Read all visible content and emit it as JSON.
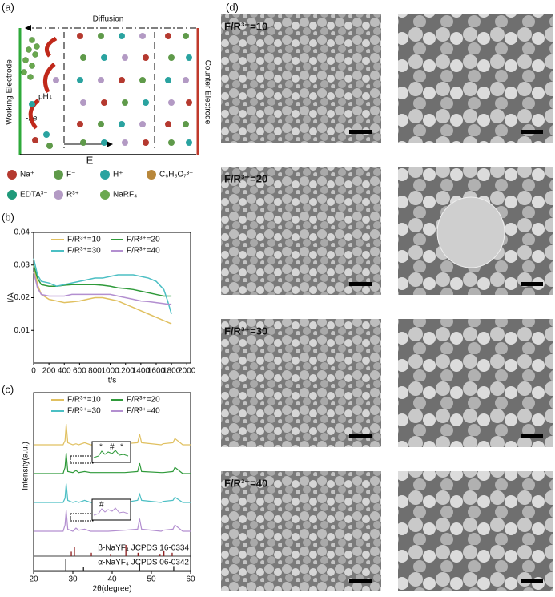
{
  "panel_labels": [
    "(a)",
    "(b)",
    "(c)",
    "(d)"
  ],
  "diagram": {
    "top_label": "Diffusion",
    "left_electrode": "Working Electrode",
    "right_electrode": "Counter Electrode",
    "field": "E",
    "ph": "pH↓",
    "electrons": "-2e",
    "legend": [
      {
        "label": "Na⁺",
        "color": "#b5392f"
      },
      {
        "label": "F⁻",
        "color": "#5f9a4a"
      },
      {
        "label": "H⁺",
        "color": "#2aa3a0"
      },
      {
        "label": "C₆H₅O₇³⁻",
        "color": "#b8873a"
      },
      {
        "label": "EDTA³⁻",
        "color": "#1f9a7a"
      },
      {
        "label": "R³⁺",
        "color": "#b39ac4"
      },
      {
        "label": "NaRF₄",
        "color": "#6aa84f"
      }
    ]
  },
  "chart_data": [
    {
      "type": "line",
      "x_label": "t/s",
      "y_label": "I/A",
      "x": [
        0,
        50,
        100,
        200,
        300,
        400,
        500,
        600,
        700,
        800,
        900,
        1000,
        1100,
        1200,
        1300,
        1400,
        1500,
        1600,
        1700,
        1750,
        1800
      ],
      "series": [
        {
          "name": "F/R³⁺=10",
          "color": "#e0c060",
          "values": [
            0.03,
            0.024,
            0.021,
            0.0195,
            0.019,
            0.0185,
            0.0187,
            0.019,
            0.0195,
            0.02,
            0.02,
            0.0195,
            0.019,
            0.018,
            0.017,
            0.016,
            0.015,
            0.014,
            0.013,
            0.0125,
            0.012
          ]
        },
        {
          "name": "F/R³⁺=20",
          "color": "#2f9a3a",
          "values": [
            0.03,
            0.026,
            0.024,
            0.0235,
            0.0235,
            0.0238,
            0.024,
            0.024,
            0.024,
            0.024,
            0.0238,
            0.0235,
            0.023,
            0.0228,
            0.0225,
            0.022,
            0.0215,
            0.021,
            0.0205,
            0.0205,
            0.0205
          ]
        },
        {
          "name": "F/R³⁺=30",
          "color": "#4cbfc4",
          "values": [
            0.032,
            0.027,
            0.025,
            0.0245,
            0.0235,
            0.024,
            0.0245,
            0.025,
            0.0255,
            0.026,
            0.026,
            0.0265,
            0.027,
            0.027,
            0.027,
            0.0265,
            0.026,
            0.025,
            0.0225,
            0.019,
            0.015
          ]
        },
        {
          "name": "F/R³⁺=40",
          "color": "#b38fd0",
          "values": [
            0.028,
            0.023,
            0.021,
            0.0205,
            0.0205,
            0.0205,
            0.021,
            0.021,
            0.021,
            0.021,
            0.021,
            0.021,
            0.0205,
            0.02,
            0.0195,
            0.019,
            0.0188,
            0.0185,
            0.0182,
            0.018,
            0.018
          ]
        }
      ],
      "xlim": [
        0,
        2050
      ],
      "ylim": [
        0,
        0.04
      ],
      "xticks": [
        0,
        200,
        400,
        600,
        800,
        1000,
        1200,
        1400,
        1600,
        1800,
        2000
      ],
      "yticks": [
        0.01,
        0.02,
        0.03,
        0.04
      ],
      "legend": "top"
    },
    {
      "type": "xrd",
      "x_label": "2θ(degree)",
      "y_label": "Intensity(a.u.)",
      "x": [
        20,
        27.5,
        28,
        28.3,
        28.7,
        30,
        30.8,
        31.5,
        33,
        34.5,
        39,
        43.2,
        46.5,
        47,
        47.5,
        52.5,
        53,
        55.5,
        56,
        58,
        60
      ],
      "series": [
        {
          "name": "F/R³⁺=10",
          "color": "#e0c060",
          "values": [
            0,
            0,
            0.2,
            1,
            0.1,
            0,
            0.05,
            0,
            0.1,
            0,
            0,
            0.05,
            0.1,
            0.5,
            0.1,
            0,
            0.05,
            0.1,
            0.3,
            0,
            0
          ]
        },
        {
          "name": "F/R³⁺=20",
          "color": "#2f9a3a",
          "values": [
            0,
            0,
            0.3,
            1,
            0.1,
            0.05,
            0.15,
            0.05,
            0.1,
            0.05,
            0.05,
            0.05,
            0.1,
            0.5,
            0.1,
            0.05,
            0.05,
            0.1,
            0.3,
            0,
            0
          ],
          "inset_labels": [
            "*",
            "#",
            "*"
          ]
        },
        {
          "name": "F/R³⁺=30",
          "color": "#4cbfc4",
          "values": [
            0,
            0,
            0.2,
            0.9,
            0.1,
            0,
            0.05,
            0,
            0.1,
            0,
            0,
            0,
            0.1,
            0.4,
            0.1,
            0,
            0.05,
            0.1,
            0.25,
            0,
            0
          ]
        },
        {
          "name": "F/R³⁺=40",
          "color": "#b38fd0",
          "values": [
            0,
            0,
            0.3,
            1,
            0.1,
            0,
            0.15,
            0.05,
            0.1,
            0,
            0,
            0.05,
            0.1,
            0.6,
            0.1,
            0,
            0.05,
            0.1,
            0.3,
            0,
            0
          ],
          "inset_labels": [
            "#"
          ]
        }
      ],
      "reference_patterns": [
        {
          "name": "β-NaYF₄ JCPDS 16-0334",
          "color": "#8b1a1a",
          "peaks": [
            29.6,
            30.4,
            34.7,
            39.6,
            43.5,
            46.6,
            52.2,
            53.2,
            55.3
          ],
          "intensities": [
            0.4,
            0.8,
            0.3,
            0.2,
            1,
            0.3,
            0.2,
            0.5,
            0.3
          ]
        },
        {
          "name": "α-NaYF₄ JCPDS 06-0342",
          "color": "#222222",
          "peaks": [
            28.2,
            32.7,
            47,
            55.7
          ],
          "intensities": [
            1,
            0.3,
            0.6,
            0.4
          ]
        }
      ],
      "xlim": [
        20,
        60
      ],
      "xticks": [
        20,
        30,
        40,
        50,
        60
      ],
      "legend": "top"
    }
  ],
  "sem": {
    "labels": [
      "F/R³⁺=10",
      "F/R³⁺=20",
      "F/R³⁺=30",
      "F/R³⁺=40"
    ]
  }
}
